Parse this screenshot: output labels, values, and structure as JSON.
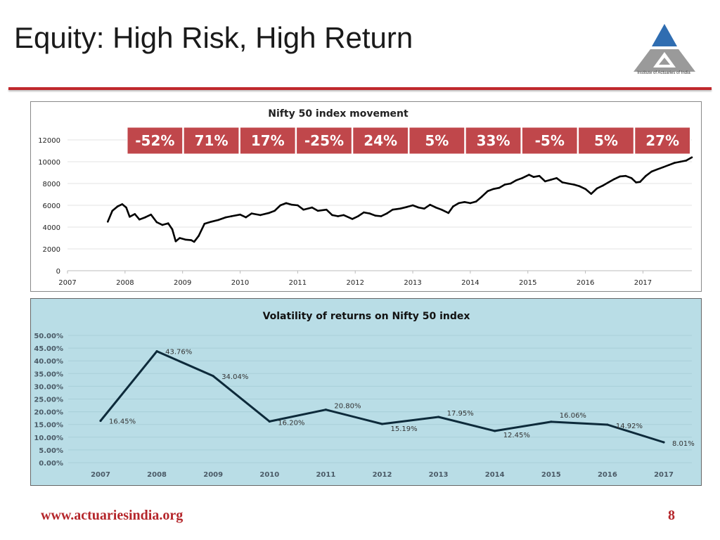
{
  "slide": {
    "title": "Equity: High Risk, High Return",
    "footer_url": "www.actuariesindia.org",
    "page_number": "8",
    "logo_caption": "Institute of Actuaries of India",
    "accent_color": "#c0282d"
  },
  "chart_data": [
    {
      "type": "line",
      "title": "Nifty 50 index movement",
      "xlabel": "",
      "ylabel": "",
      "x_ticks": [
        "2007",
        "2008",
        "2009",
        "2010",
        "2011",
        "2012",
        "2013",
        "2014",
        "2015",
        "2016",
        "2017"
      ],
      "y_ticks": [
        "0",
        "2000",
        "4000",
        "6000",
        "8000",
        "10000",
        "12000"
      ],
      "ylim": [
        0,
        12000
      ],
      "xlim": [
        2007.0,
        2017.85
      ],
      "grid": true,
      "series": [
        {
          "name": "Nifty 50",
          "color": "#000000",
          "points": [
            [
              2007.7,
              4500
            ],
            [
              2007.78,
              5500
            ],
            [
              2007.87,
              5900
            ],
            [
              2007.95,
              6100
            ],
            [
              2008.02,
              5800
            ],
            [
              2008.08,
              4950
            ],
            [
              2008.17,
              5200
            ],
            [
              2008.25,
              4700
            ],
            [
              2008.35,
              4900
            ],
            [
              2008.45,
              5150
            ],
            [
              2008.55,
              4450
            ],
            [
              2008.65,
              4200
            ],
            [
              2008.75,
              4350
            ],
            [
              2008.82,
              3800
            ],
            [
              2008.88,
              2700
            ],
            [
              2008.95,
              3000
            ],
            [
              2009.05,
              2850
            ],
            [
              2009.15,
              2800
            ],
            [
              2009.2,
              2650
            ],
            [
              2009.28,
              3200
            ],
            [
              2009.38,
              4300
            ],
            [
              2009.5,
              4500
            ],
            [
              2009.62,
              4650
            ],
            [
              2009.75,
              4900
            ],
            [
              2009.85,
              5000
            ],
            [
              2010.0,
              5150
            ],
            [
              2010.1,
              4900
            ],
            [
              2010.2,
              5250
            ],
            [
              2010.35,
              5100
            ],
            [
              2010.5,
              5300
            ],
            [
              2010.6,
              5500
            ],
            [
              2010.7,
              6000
            ],
            [
              2010.8,
              6200
            ],
            [
              2010.9,
              6050
            ],
            [
              2011.0,
              6000
            ],
            [
              2011.1,
              5600
            ],
            [
              2011.25,
              5800
            ],
            [
              2011.35,
              5500
            ],
            [
              2011.5,
              5600
            ],
            [
              2011.6,
              5100
            ],
            [
              2011.7,
              5000
            ],
            [
              2011.8,
              5100
            ],
            [
              2011.95,
              4750
            ],
            [
              2012.05,
              5000
            ],
            [
              2012.15,
              5350
            ],
            [
              2012.25,
              5250
            ],
            [
              2012.35,
              5050
            ],
            [
              2012.45,
              5000
            ],
            [
              2012.55,
              5250
            ],
            [
              2012.65,
              5600
            ],
            [
              2012.78,
              5700
            ],
            [
              2012.9,
              5850
            ],
            [
              2013.0,
              6000
            ],
            [
              2013.1,
              5800
            ],
            [
              2013.2,
              5700
            ],
            [
              2013.3,
              6050
            ],
            [
              2013.4,
              5800
            ],
            [
              2013.5,
              5600
            ],
            [
              2013.62,
              5300
            ],
            [
              2013.7,
              5900
            ],
            [
              2013.8,
              6200
            ],
            [
              2013.9,
              6300
            ],
            [
              2014.0,
              6200
            ],
            [
              2014.1,
              6350
            ],
            [
              2014.2,
              6800
            ],
            [
              2014.3,
              7300
            ],
            [
              2014.4,
              7500
            ],
            [
              2014.5,
              7600
            ],
            [
              2014.6,
              7900
            ],
            [
              2014.7,
              8000
            ],
            [
              2014.8,
              8300
            ],
            [
              2014.9,
              8500
            ],
            [
              2015.02,
              8800
            ],
            [
              2015.1,
              8600
            ],
            [
              2015.2,
              8700
            ],
            [
              2015.3,
              8200
            ],
            [
              2015.4,
              8350
            ],
            [
              2015.5,
              8500
            ],
            [
              2015.6,
              8100
            ],
            [
              2015.7,
              8000
            ],
            [
              2015.8,
              7900
            ],
            [
              2015.9,
              7750
            ],
            [
              2016.0,
              7500
            ],
            [
              2016.1,
              7050
            ],
            [
              2016.2,
              7550
            ],
            [
              2016.3,
              7800
            ],
            [
              2016.4,
              8100
            ],
            [
              2016.5,
              8400
            ],
            [
              2016.6,
              8650
            ],
            [
              2016.7,
              8700
            ],
            [
              2016.8,
              8500
            ],
            [
              2016.88,
              8100
            ],
            [
              2016.95,
              8150
            ],
            [
              2017.05,
              8700
            ],
            [
              2017.15,
              9100
            ],
            [
              2017.25,
              9300
            ],
            [
              2017.35,
              9500
            ],
            [
              2017.45,
              9700
            ],
            [
              2017.55,
              9900
            ],
            [
              2017.65,
              10000
            ],
            [
              2017.75,
              10100
            ],
            [
              2017.85,
              10400
            ]
          ]
        }
      ],
      "annual_returns": {
        "years": [
          "2008",
          "2009",
          "2010",
          "2011",
          "2012",
          "2013",
          "2014",
          "2015",
          "2016",
          "2017"
        ],
        "labels": [
          "-52%",
          "71%",
          "17%",
          "-25%",
          "24%",
          "5%",
          "33%",
          "-5%",
          "5%",
          "27%"
        ],
        "box_color": "#c0474b"
      }
    },
    {
      "type": "line",
      "title": "Volatility of returns on Nifty 50 index",
      "xlabel": "",
      "ylabel": "",
      "categories": [
        "2007",
        "2008",
        "2009",
        "2010",
        "2011",
        "2012",
        "2013",
        "2014",
        "2015",
        "2016",
        "2017"
      ],
      "y_ticks": [
        "0.00%",
        "5.00%",
        "10.00%",
        "15.00%",
        "20.00%",
        "25.00%",
        "30.00%",
        "35.00%",
        "40.00%",
        "45.00%",
        "50.00%"
      ],
      "ylim": [
        0,
        50
      ],
      "grid": true,
      "background": "#b9dde6",
      "series": [
        {
          "name": "Volatility",
          "color": "#0d2a3a",
          "values": [
            16.45,
            43.76,
            34.04,
            16.2,
            20.8,
            15.19,
            17.95,
            12.45,
            16.06,
            14.92,
            8.01
          ],
          "data_labels": [
            "16.45%",
            "43.76%",
            "34.04%",
            "16.20%",
            "20.80%",
            "15.19%",
            "17.95%",
            "12.45%",
            "16.06%",
            "14.92%",
            "8.01%"
          ]
        }
      ]
    }
  ]
}
